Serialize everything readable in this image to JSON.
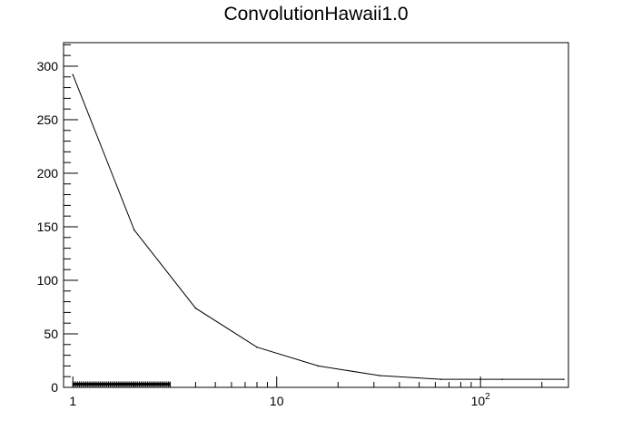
{
  "chart_data": {
    "type": "line",
    "title": "ConvolutionHawaii1.0",
    "xlabel": "",
    "ylabel": "",
    "x_scale": "log",
    "xlim": [
      0.9,
      270
    ],
    "ylim": [
      0,
      322
    ],
    "grid": false,
    "x_ticks": [
      {
        "value": 1,
        "base": "1",
        "sup": ""
      },
      {
        "value": 10,
        "base": "10",
        "sup": ""
      },
      {
        "value": 100,
        "base": "10",
        "sup": "2"
      }
    ],
    "y_ticks": [
      0,
      50,
      100,
      150,
      200,
      250,
      300
    ],
    "series": [
      {
        "x": [
          1,
          2,
          4,
          8,
          16,
          32,
          64,
          128,
          256
        ],
        "y": [
          292,
          147,
          74,
          37.5,
          20,
          11,
          7.5,
          7.5,
          7.5
        ]
      }
    ],
    "rug": {
      "y": 3,
      "xmin": 1,
      "xmax": 3
    }
  }
}
